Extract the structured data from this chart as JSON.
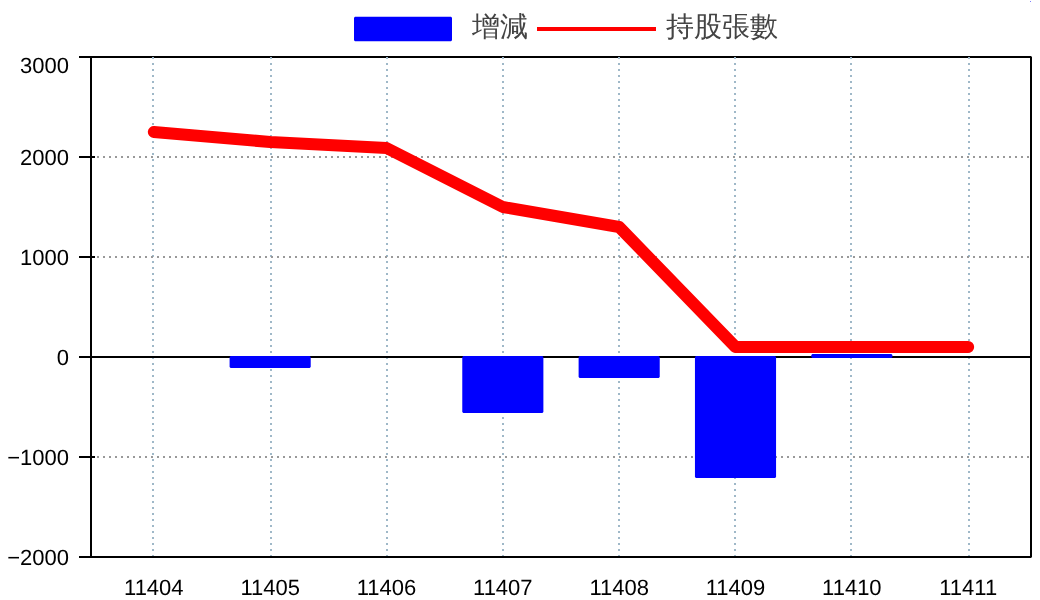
{
  "chart_data": {
    "type": "bar",
    "categories": [
      "11404",
      "11405",
      "11406",
      "11407",
      "11408",
      "11409",
      "11410",
      "11411"
    ],
    "series": [
      {
        "name": "增減",
        "color": "#0000ff",
        "values": [
          null,
          -100,
          null,
          -550,
          -200,
          -1200,
          20,
          null
        ]
      },
      {
        "name": "持股張數",
        "type": "line",
        "color": "#ff0000",
        "values": [
          2250,
          2150,
          2090,
          1500,
          1300,
          100,
          100,
          100
        ]
      }
    ],
    "ylim": [
      -2000,
      3000
    ],
    "yticks": [
      -2000,
      -1000,
      0,
      1000,
      2000,
      3000
    ],
    "grid": true,
    "legend": "top",
    "ref_lines": [
      {
        "axis": "y",
        "value": 0,
        "color": "#000000"
      }
    ]
  }
}
